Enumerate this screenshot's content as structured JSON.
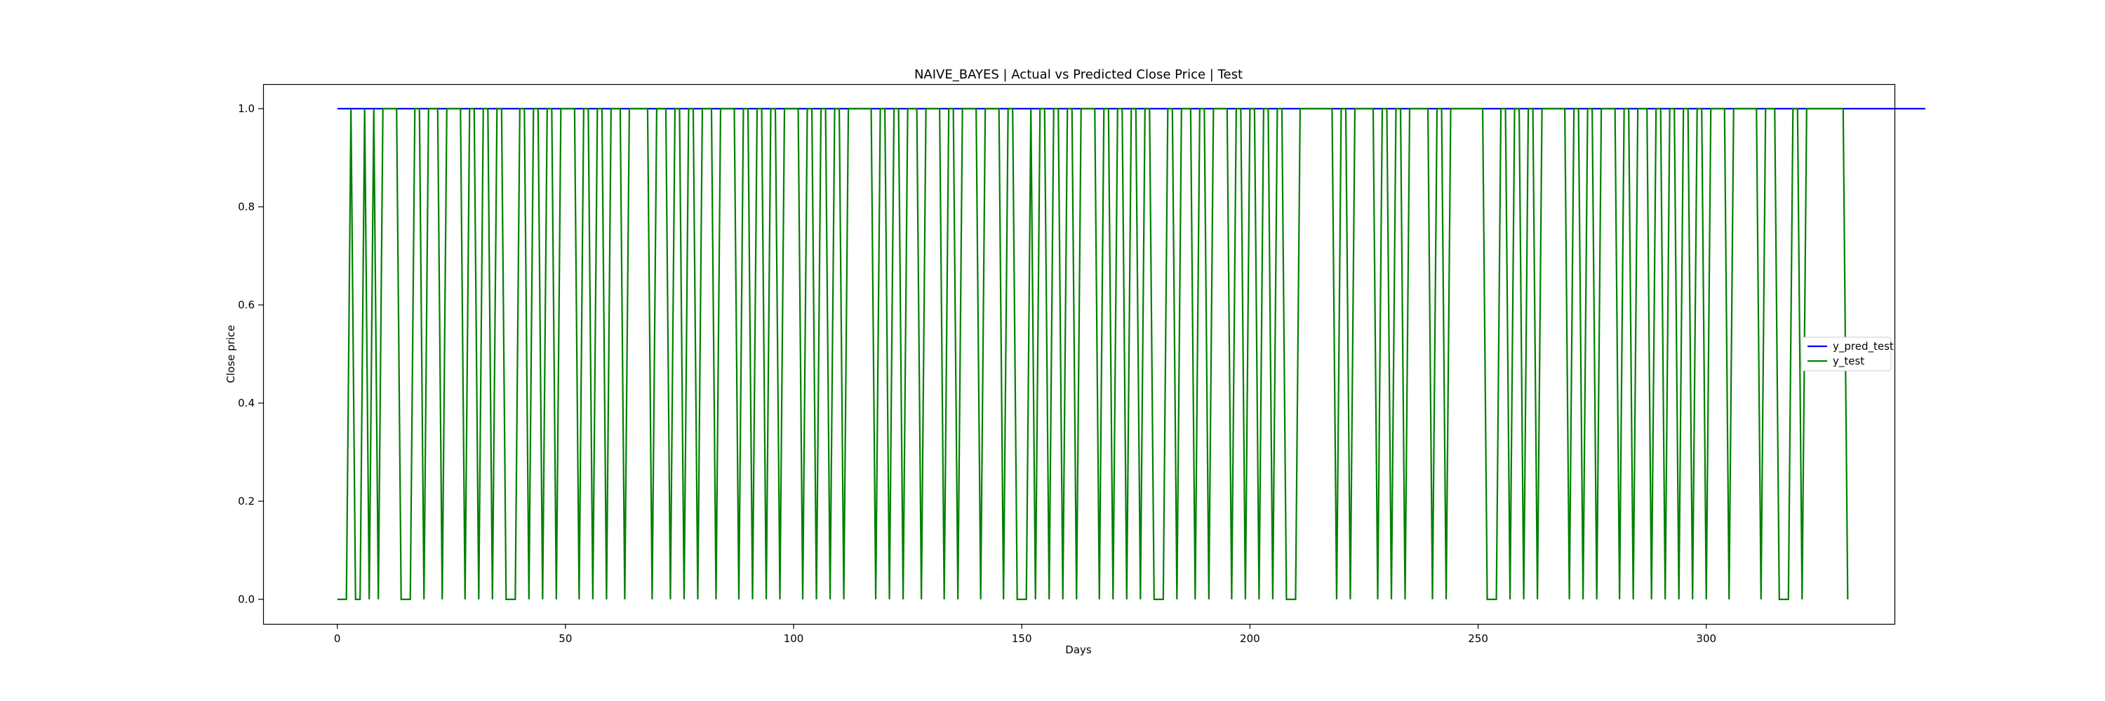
{
  "chart_data": {
    "type": "line",
    "title": "NAIVE_BAYES | Actual vs Predicted Close Price | Test",
    "xlabel": "Days",
    "ylabel": "Close price",
    "xlim": [
      -16.25,
      341.25
    ],
    "ylim": [
      -0.05,
      1.05
    ],
    "x_ticks": [
      0,
      50,
      100,
      150,
      200,
      250,
      300
    ],
    "y_ticks": [
      0.0,
      0.2,
      0.4,
      0.6,
      0.8,
      1.0
    ],
    "x_tick_labels": [
      "0",
      "50",
      "100",
      "150",
      "200",
      "250",
      "300"
    ],
    "y_tick_labels": [
      "0.0",
      "0.2",
      "0.4",
      "0.6",
      "0.8",
      "1.0"
    ],
    "grid": false,
    "legend_position": "center-right",
    "series": [
      {
        "name": "y_pred_test",
        "color": "#0000ff",
        "x_start": 0,
        "values": [
          1,
          1,
          1,
          1,
          1,
          1,
          1,
          1,
          1,
          1,
          1,
          1,
          1,
          1,
          1,
          1,
          1,
          1,
          1,
          1,
          1,
          1,
          1,
          1,
          1,
          1,
          1,
          1,
          1,
          1,
          1,
          1,
          1,
          1,
          1,
          1,
          1,
          1,
          1,
          1,
          1,
          1,
          1,
          1,
          1,
          1,
          1,
          1,
          1,
          1,
          1,
          1,
          1,
          1,
          1,
          1,
          1,
          1,
          1,
          1,
          1,
          1,
          1,
          1,
          1,
          1,
          1,
          1,
          1,
          1,
          1,
          1,
          1,
          1,
          1,
          1,
          1,
          1,
          1,
          1,
          1,
          1,
          1,
          1,
          1,
          1,
          1,
          1,
          1,
          1,
          1,
          1,
          1,
          1,
          1,
          1,
          1,
          1,
          1,
          1,
          1,
          1,
          1,
          1,
          1,
          1,
          1,
          1,
          1,
          1,
          1,
          1,
          1,
          1,
          1,
          1,
          1,
          1,
          1,
          1,
          1,
          1,
          1,
          1,
          1,
          1,
          1,
          1,
          1,
          1,
          1,
          1,
          1,
          1,
          1,
          1,
          1,
          1,
          1,
          1,
          1,
          1,
          1,
          1,
          1,
          1,
          1,
          1,
          1,
          1,
          1,
          1,
          1,
          1,
          1,
          1,
          1,
          1,
          1,
          1,
          1,
          1,
          1,
          1,
          1,
          1,
          1,
          1,
          1,
          1,
          1,
          1,
          1,
          1,
          1,
          1,
          1,
          1,
          1,
          1,
          1,
          1,
          1,
          1,
          1,
          1,
          1,
          1,
          1,
          1,
          1,
          1,
          1,
          1,
          1,
          1,
          1,
          1,
          1,
          1,
          1,
          1,
          1,
          1,
          1,
          1,
          1,
          1,
          1,
          1,
          1,
          1,
          1,
          1,
          1,
          1,
          1,
          1,
          1,
          1,
          1,
          1,
          1,
          1,
          1,
          1,
          1,
          1,
          1,
          1,
          1,
          1,
          1,
          1,
          1,
          1,
          1,
          1,
          1,
          1,
          1,
          1,
          1,
          1,
          1,
          1,
          1,
          1,
          1,
          1,
          1,
          1,
          1,
          1,
          1,
          1,
          1,
          1,
          1,
          1,
          1,
          1,
          1,
          1,
          1,
          1,
          1,
          1,
          1,
          1,
          1,
          1,
          1,
          1,
          1,
          1,
          1,
          1,
          1,
          1,
          1,
          1,
          1,
          1,
          1,
          1,
          1,
          1,
          1,
          1,
          1,
          1,
          1,
          1,
          1,
          1,
          1,
          1,
          1,
          1,
          1,
          1,
          1,
          1,
          1,
          1,
          1,
          1,
          1,
          1,
          1,
          1,
          1,
          1,
          1,
          1,
          1,
          1,
          1,
          1,
          1,
          1,
          1,
          1,
          1,
          1,
          1,
          1,
          1,
          1,
          1,
          1,
          1,
          1,
          1,
          1,
          1,
          1,
          1,
          1,
          1,
          1,
          1,
          1,
          1,
          1,
          1,
          1,
          1
        ]
      },
      {
        "name": "y_test",
        "color": "#008000",
        "x_start": 0,
        "values": [
          0,
          0,
          0,
          1,
          0,
          0,
          1,
          0,
          1,
          0,
          1,
          1,
          1,
          1,
          0,
          0,
          0,
          1,
          1,
          0,
          1,
          1,
          1,
          0,
          1,
          1,
          1,
          1,
          0,
          1,
          1,
          0,
          1,
          1,
          0,
          1,
          1,
          0,
          0,
          0,
          1,
          1,
          0,
          1,
          1,
          0,
          1,
          1,
          0,
          1,
          1,
          1,
          1,
          0,
          1,
          1,
          0,
          1,
          1,
          0,
          1,
          1,
          1,
          0,
          1,
          1,
          1,
          1,
          1,
          0,
          1,
          1,
          1,
          0,
          1,
          1,
          0,
          1,
          1,
          0,
          1,
          1,
          1,
          0,
          1,
          1,
          1,
          1,
          0,
          1,
          1,
          0,
          1,
          1,
          0,
          1,
          1,
          0,
          1,
          1,
          1,
          1,
          0,
          1,
          1,
          0,
          1,
          1,
          0,
          1,
          1,
          0,
          1,
          1,
          1,
          1,
          1,
          1,
          0,
          1,
          1,
          0,
          1,
          1,
          0,
          1,
          1,
          1,
          0,
          1,
          1,
          1,
          1,
          0,
          1,
          1,
          0,
          1,
          1,
          1,
          1,
          0,
          1,
          1,
          1,
          1,
          0,
          1,
          1,
          0,
          0,
          0,
          1,
          0,
          1,
          1,
          0,
          1,
          1,
          0,
          1,
          1,
          0,
          1,
          1,
          1,
          1,
          0,
          1,
          1,
          0,
          1,
          1,
          0,
          1,
          1,
          0,
          1,
          1,
          0,
          0,
          0,
          1,
          1,
          0,
          1,
          1,
          1,
          0,
          1,
          1,
          0,
          1,
          1,
          1,
          1,
          0,
          1,
          1,
          0,
          1,
          1,
          0,
          1,
          1,
          0,
          1,
          1,
          0,
          0,
          0,
          1,
          1,
          1,
          1,
          1,
          1,
          1,
          1,
          0,
          1,
          1,
          0,
          1,
          1,
          1,
          1,
          1,
          0,
          1,
          1,
          0,
          1,
          1,
          0,
          1,
          1,
          1,
          1,
          1,
          0,
          1,
          1,
          0,
          1,
          1,
          1,
          1,
          1,
          1,
          1,
          1,
          0,
          0,
          0,
          1,
          1,
          0,
          1,
          1,
          0,
          1,
          1,
          0,
          1,
          1,
          1,
          1,
          1,
          1,
          0,
          1,
          1,
          0,
          1,
          1,
          0,
          1,
          1,
          1,
          1,
          0,
          1,
          1,
          0,
          1,
          1,
          1,
          0,
          1,
          1,
          0,
          1,
          1,
          0,
          1,
          1,
          0,
          1,
          1,
          0,
          1,
          1,
          1,
          1,
          0,
          1,
          1,
          1,
          1,
          1,
          1,
          0,
          1,
          1,
          1,
          0,
          0,
          0,
          1,
          1,
          0,
          1,
          1,
          1,
          1,
          1,
          1,
          1,
          1,
          1,
          0
        ]
      }
    ]
  }
}
